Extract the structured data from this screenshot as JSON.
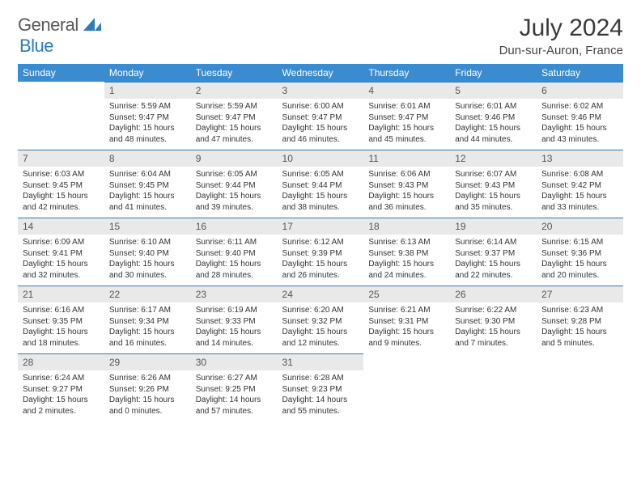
{
  "brand": {
    "general": "General",
    "blue": "Blue"
  },
  "title": "July 2024",
  "location": "Dun-sur-Auron, France",
  "colors": {
    "header_bg": "#3a8bcf",
    "header_text": "#ffffff",
    "daybar_bg": "#e9e9e9",
    "daybar_border": "#2a7cc0",
    "text": "#333333",
    "logo_gray": "#5a5a5a",
    "logo_blue": "#2a7cc0"
  },
  "typography": {
    "title_fontsize": 30,
    "location_fontsize": 15,
    "header_fontsize": 12,
    "body_fontsize": 10
  },
  "weekdays": [
    "Sunday",
    "Monday",
    "Tuesday",
    "Wednesday",
    "Thursday",
    "Friday",
    "Saturday"
  ],
  "weeks": [
    [
      null,
      {
        "n": "1",
        "sunrise": "5:59 AM",
        "sunset": "9:47 PM",
        "daylight": "15 hours and 48 minutes."
      },
      {
        "n": "2",
        "sunrise": "5:59 AM",
        "sunset": "9:47 PM",
        "daylight": "15 hours and 47 minutes."
      },
      {
        "n": "3",
        "sunrise": "6:00 AM",
        "sunset": "9:47 PM",
        "daylight": "15 hours and 46 minutes."
      },
      {
        "n": "4",
        "sunrise": "6:01 AM",
        "sunset": "9:47 PM",
        "daylight": "15 hours and 45 minutes."
      },
      {
        "n": "5",
        "sunrise": "6:01 AM",
        "sunset": "9:46 PM",
        "daylight": "15 hours and 44 minutes."
      },
      {
        "n": "6",
        "sunrise": "6:02 AM",
        "sunset": "9:46 PM",
        "daylight": "15 hours and 43 minutes."
      }
    ],
    [
      {
        "n": "7",
        "sunrise": "6:03 AM",
        "sunset": "9:45 PM",
        "daylight": "15 hours and 42 minutes."
      },
      {
        "n": "8",
        "sunrise": "6:04 AM",
        "sunset": "9:45 PM",
        "daylight": "15 hours and 41 minutes."
      },
      {
        "n": "9",
        "sunrise": "6:05 AM",
        "sunset": "9:44 PM",
        "daylight": "15 hours and 39 minutes."
      },
      {
        "n": "10",
        "sunrise": "6:05 AM",
        "sunset": "9:44 PM",
        "daylight": "15 hours and 38 minutes."
      },
      {
        "n": "11",
        "sunrise": "6:06 AM",
        "sunset": "9:43 PM",
        "daylight": "15 hours and 36 minutes."
      },
      {
        "n": "12",
        "sunrise": "6:07 AM",
        "sunset": "9:43 PM",
        "daylight": "15 hours and 35 minutes."
      },
      {
        "n": "13",
        "sunrise": "6:08 AM",
        "sunset": "9:42 PM",
        "daylight": "15 hours and 33 minutes."
      }
    ],
    [
      {
        "n": "14",
        "sunrise": "6:09 AM",
        "sunset": "9:41 PM",
        "daylight": "15 hours and 32 minutes."
      },
      {
        "n": "15",
        "sunrise": "6:10 AM",
        "sunset": "9:40 PM",
        "daylight": "15 hours and 30 minutes."
      },
      {
        "n": "16",
        "sunrise": "6:11 AM",
        "sunset": "9:40 PM",
        "daylight": "15 hours and 28 minutes."
      },
      {
        "n": "17",
        "sunrise": "6:12 AM",
        "sunset": "9:39 PM",
        "daylight": "15 hours and 26 minutes."
      },
      {
        "n": "18",
        "sunrise": "6:13 AM",
        "sunset": "9:38 PM",
        "daylight": "15 hours and 24 minutes."
      },
      {
        "n": "19",
        "sunrise": "6:14 AM",
        "sunset": "9:37 PM",
        "daylight": "15 hours and 22 minutes."
      },
      {
        "n": "20",
        "sunrise": "6:15 AM",
        "sunset": "9:36 PM",
        "daylight": "15 hours and 20 minutes."
      }
    ],
    [
      {
        "n": "21",
        "sunrise": "6:16 AM",
        "sunset": "9:35 PM",
        "daylight": "15 hours and 18 minutes."
      },
      {
        "n": "22",
        "sunrise": "6:17 AM",
        "sunset": "9:34 PM",
        "daylight": "15 hours and 16 minutes."
      },
      {
        "n": "23",
        "sunrise": "6:19 AM",
        "sunset": "9:33 PM",
        "daylight": "15 hours and 14 minutes."
      },
      {
        "n": "24",
        "sunrise": "6:20 AM",
        "sunset": "9:32 PM",
        "daylight": "15 hours and 12 minutes."
      },
      {
        "n": "25",
        "sunrise": "6:21 AM",
        "sunset": "9:31 PM",
        "daylight": "15 hours and 9 minutes."
      },
      {
        "n": "26",
        "sunrise": "6:22 AM",
        "sunset": "9:30 PM",
        "daylight": "15 hours and 7 minutes."
      },
      {
        "n": "27",
        "sunrise": "6:23 AM",
        "sunset": "9:28 PM",
        "daylight": "15 hours and 5 minutes."
      }
    ],
    [
      {
        "n": "28",
        "sunrise": "6:24 AM",
        "sunset": "9:27 PM",
        "daylight": "15 hours and 2 minutes."
      },
      {
        "n": "29",
        "sunrise": "6:26 AM",
        "sunset": "9:26 PM",
        "daylight": "15 hours and 0 minutes."
      },
      {
        "n": "30",
        "sunrise": "6:27 AM",
        "sunset": "9:25 PM",
        "daylight": "14 hours and 57 minutes."
      },
      {
        "n": "31",
        "sunrise": "6:28 AM",
        "sunset": "9:23 PM",
        "daylight": "14 hours and 55 minutes."
      },
      null,
      null,
      null
    ]
  ],
  "labels": {
    "sunrise": "Sunrise:",
    "sunset": "Sunset:",
    "daylight": "Daylight:"
  }
}
